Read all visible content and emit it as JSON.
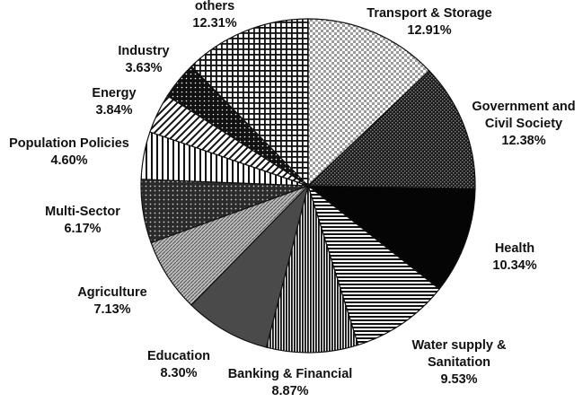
{
  "chart_data": {
    "type": "pie",
    "title": "",
    "start_angle_deg": 0,
    "direction": "clockwise",
    "slices": [
      {
        "label": "Transport & Storage",
        "value": 12.91,
        "display": "12.91%",
        "pattern": "dots-light"
      },
      {
        "label": "Government and Civil Society",
        "value": 12.38,
        "display": "12.38%",
        "pattern": "dark-checker"
      },
      {
        "label": "Health",
        "value": 10.34,
        "display": "10.34%",
        "pattern": "solid-black"
      },
      {
        "label": "Water supply & Sanitation",
        "value": 9.53,
        "display": "9.53%",
        "pattern": "horizontal-lines"
      },
      {
        "label": "Banking & Financial",
        "value": 8.87,
        "display": "8.87%",
        "pattern": "vertical-lines"
      },
      {
        "label": "Education",
        "value": 8.3,
        "display": "8.30%",
        "pattern": "solid-dark-gray"
      },
      {
        "label": "Agriculture",
        "value": 7.13,
        "display": "7.13%",
        "pattern": "diagonal-fine"
      },
      {
        "label": "Multi-Sector",
        "value": 6.17,
        "display": "6.17%",
        "pattern": "dark-dots"
      },
      {
        "label": "Population Policies",
        "value": 4.6,
        "display": "4.60%",
        "pattern": "vertical-sparse"
      },
      {
        "label": "Energy",
        "value": 3.84,
        "display": "3.84%",
        "pattern": "diagonal-hatch"
      },
      {
        "label": "Industry",
        "value": 3.63,
        "display": "3.63%",
        "pattern": "black-white-dots"
      },
      {
        "label": "others",
        "value": 12.31,
        "display": "12.31%",
        "pattern": "grid"
      }
    ]
  }
}
